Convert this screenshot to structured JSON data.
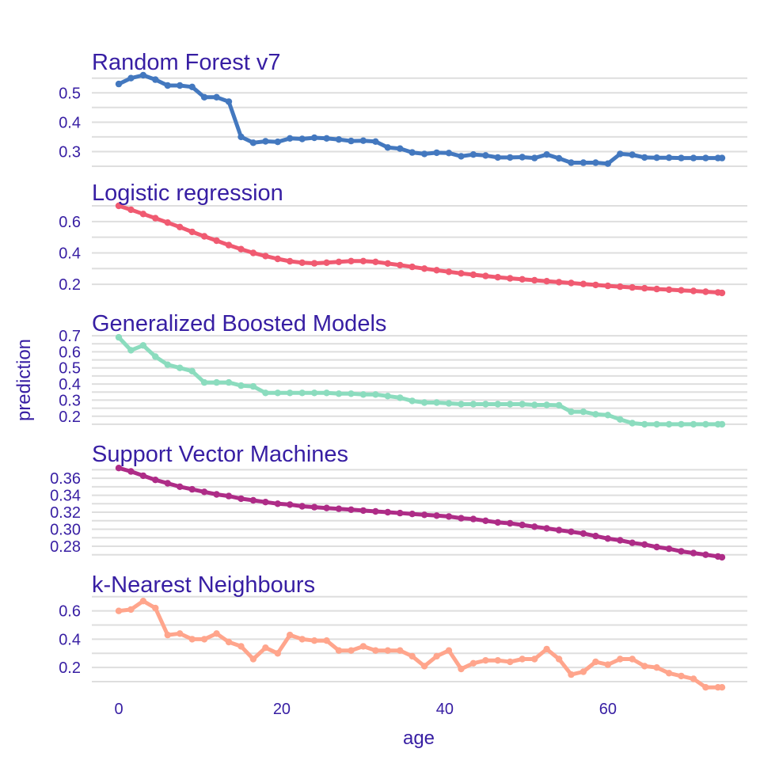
{
  "chart_data": {
    "type": "line",
    "xlabel": "age",
    "ylabel": "prediction",
    "xlim": [
      -3,
      77
    ],
    "x_ticks": [
      0,
      20,
      40,
      60
    ],
    "x": [
      0,
      1.5,
      3,
      4.5,
      6,
      7.5,
      9,
      10.5,
      12,
      13.5,
      15,
      16.5,
      18,
      19.5,
      21,
      22.5,
      24,
      25.5,
      27,
      28.5,
      30,
      31.5,
      33,
      34.5,
      36,
      37.5,
      39,
      40.5,
      42,
      43.5,
      45,
      46.5,
      48,
      49.5,
      51,
      52.5,
      54,
      55.5,
      57,
      58.5,
      60,
      61.5,
      63,
      64.5,
      66,
      67.5,
      69,
      70.5,
      72,
      73.5,
      74
    ],
    "grid": true,
    "series": [
      {
        "name": "Random Forest v7",
        "color": "#4378bf",
        "ylim": [
          0.25,
          0.56
        ],
        "y_ticks": [
          0.3,
          0.4,
          0.5
        ],
        "y_tick_labels": [
          "0.3",
          "0.4",
          "0.5"
        ],
        "values": [
          0.53,
          0.55,
          0.56,
          0.545,
          0.525,
          0.525,
          0.52,
          0.485,
          0.485,
          0.47,
          0.35,
          0.33,
          0.335,
          0.333,
          0.345,
          0.343,
          0.347,
          0.345,
          0.341,
          0.336,
          0.337,
          0.334,
          0.314,
          0.31,
          0.297,
          0.292,
          0.296,
          0.295,
          0.284,
          0.29,
          0.287,
          0.28,
          0.28,
          0.281,
          0.278,
          0.29,
          0.277,
          0.262,
          0.262,
          0.262,
          0.259,
          0.292,
          0.289,
          0.28,
          0.279,
          0.279,
          0.278,
          0.278,
          0.278,
          0.278,
          0.278
        ]
      },
      {
        "name": "Logistic regression",
        "color": "#f05a71",
        "ylim": [
          0.12,
          0.71
        ],
        "y_ticks": [
          0.2,
          0.4,
          0.6
        ],
        "y_tick_labels": [
          "0.2",
          "0.4",
          "0.6"
        ],
        "values": [
          0.7,
          0.675,
          0.648,
          0.621,
          0.593,
          0.565,
          0.534,
          0.506,
          0.478,
          0.45,
          0.424,
          0.4,
          0.38,
          0.362,
          0.347,
          0.338,
          0.334,
          0.338,
          0.343,
          0.348,
          0.348,
          0.343,
          0.333,
          0.322,
          0.311,
          0.3,
          0.29,
          0.28,
          0.27,
          0.261,
          0.253,
          0.245,
          0.238,
          0.232,
          0.226,
          0.22,
          0.214,
          0.208,
          0.202,
          0.196,
          0.19,
          0.185,
          0.18,
          0.175,
          0.17,
          0.166,
          0.162,
          0.158,
          0.153,
          0.148,
          0.145
        ]
      },
      {
        "name": "Generalized Boosted Models",
        "color": "#8bdcbe",
        "ylim": [
          0.13,
          0.72
        ],
        "y_ticks": [
          0.2,
          0.3,
          0.4,
          0.5,
          0.6,
          0.7
        ],
        "y_tick_labels": [
          "0.2",
          "0.3",
          "0.4",
          "0.5",
          "0.6",
          "0.7"
        ],
        "values": [
          0.69,
          0.61,
          0.64,
          0.57,
          0.52,
          0.5,
          0.48,
          0.41,
          0.41,
          0.41,
          0.39,
          0.385,
          0.345,
          0.345,
          0.345,
          0.345,
          0.345,
          0.345,
          0.34,
          0.34,
          0.335,
          0.335,
          0.325,
          0.315,
          0.295,
          0.285,
          0.285,
          0.28,
          0.275,
          0.275,
          0.275,
          0.275,
          0.275,
          0.275,
          0.27,
          0.27,
          0.268,
          0.228,
          0.228,
          0.212,
          0.207,
          0.18,
          0.157,
          0.15,
          0.15,
          0.15,
          0.15,
          0.15,
          0.15,
          0.15,
          0.15
        ]
      },
      {
        "name": "Support Vector Machines",
        "color": "#ae2c87",
        "ylim": [
          0.266,
          0.375
        ],
        "y_ticks": [
          0.28,
          0.3,
          0.32,
          0.34,
          0.36
        ],
        "y_tick_labels": [
          "0.28",
          "0.30",
          "0.32",
          "0.34",
          "0.36"
        ],
        "values": [
          0.372,
          0.368,
          0.363,
          0.358,
          0.354,
          0.35,
          0.347,
          0.344,
          0.341,
          0.339,
          0.336,
          0.334,
          0.332,
          0.33,
          0.329,
          0.327,
          0.326,
          0.325,
          0.324,
          0.323,
          0.322,
          0.321,
          0.32,
          0.319,
          0.318,
          0.317,
          0.316,
          0.315,
          0.313,
          0.312,
          0.31,
          0.308,
          0.307,
          0.305,
          0.303,
          0.301,
          0.299,
          0.297,
          0.295,
          0.292,
          0.289,
          0.287,
          0.284,
          0.282,
          0.279,
          0.277,
          0.274,
          0.272,
          0.27,
          0.268,
          0.267
        ]
      },
      {
        "name": "k-Nearest Neighbours",
        "color": "#ffa58c",
        "ylim": [
          0.05,
          0.71
        ],
        "y_ticks": [
          0.2,
          0.4,
          0.6
        ],
        "y_tick_labels": [
          "0.2",
          "0.4",
          "0.6"
        ],
        "values": [
          0.6,
          0.61,
          0.67,
          0.62,
          0.43,
          0.44,
          0.4,
          0.4,
          0.44,
          0.38,
          0.35,
          0.26,
          0.34,
          0.3,
          0.43,
          0.4,
          0.39,
          0.39,
          0.32,
          0.32,
          0.35,
          0.32,
          0.32,
          0.32,
          0.28,
          0.21,
          0.28,
          0.32,
          0.19,
          0.23,
          0.25,
          0.25,
          0.24,
          0.26,
          0.26,
          0.33,
          0.26,
          0.15,
          0.17,
          0.24,
          0.22,
          0.26,
          0.26,
          0.21,
          0.2,
          0.16,
          0.14,
          0.12,
          0.06,
          0.06,
          0.06
        ]
      }
    ]
  }
}
